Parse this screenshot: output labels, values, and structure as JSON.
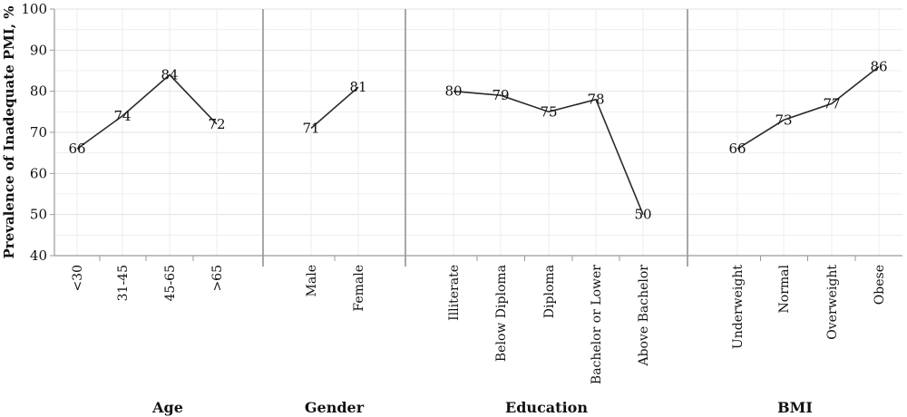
{
  "chart_data": {
    "type": "line",
    "ylabel": "Prevalence of Inadequate PMI, %",
    "ylim": [
      40,
      100
    ],
    "yticks": [
      40,
      50,
      60,
      70,
      80,
      90,
      100
    ],
    "grid": true,
    "groups": [
      {
        "name": "Age",
        "categories": [
          "<30",
          "31-45",
          "45-65",
          ">65"
        ],
        "values": [
          66,
          74,
          84,
          72
        ]
      },
      {
        "name": "Gender",
        "categories": [
          "Male",
          "Female"
        ],
        "values": [
          71,
          81
        ]
      },
      {
        "name": "Education",
        "categories": [
          "Illiterate",
          "Below Diploma",
          "Diploma",
          "Bachelor or Lower",
          "Above Bachelor"
        ],
        "values": [
          80,
          79,
          75,
          78,
          50
        ]
      },
      {
        "name": "BMI",
        "categories": [
          "Underweight",
          "Normal",
          "Overweight",
          "Obese"
        ],
        "values": [
          66,
          73,
          77,
          86
        ]
      }
    ]
  }
}
